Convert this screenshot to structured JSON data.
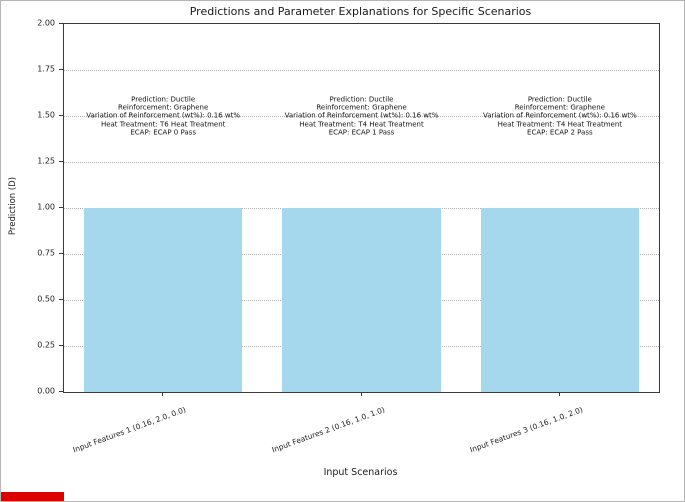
{
  "chart_data": {
    "type": "bar",
    "title": "Predictions and Parameter Explanations for Specific Scenarios",
    "xlabel": "Input Scenarios",
    "ylabel": "Prediction (D)",
    "ylim": [
      0,
      2.0
    ],
    "yticks": [
      "0.00",
      "0.25",
      "0.50",
      "0.75",
      "1.00",
      "1.25",
      "1.50",
      "1.75",
      "2.00"
    ],
    "ytick_values": [
      0,
      0.25,
      0.5,
      0.75,
      1.0,
      1.25,
      1.5,
      1.75,
      2.0
    ],
    "grid": "dotted-horizontal",
    "legend": "none",
    "bar_color": "#a5d8ec",
    "categories": [
      "Input Features 1 (0.16, 2.0, 0.0)",
      "Input Features 2 (0.16, 1.0, 1.0)",
      "Input Features 3 (0.16, 1.0, 2.0)"
    ],
    "values": [
      1.0,
      1.0,
      1.0
    ],
    "annotations": [
      {
        "anchor_y": 1.5,
        "lines": [
          "Prediction: Ductile",
          "Reinforcement: Graphene",
          "Variation of Reinforcement (wt%): 0.16 wt%",
          "Heat Treatment: T6 Heat Treatment",
          "ECAP: ECAP 0 Pass"
        ]
      },
      {
        "anchor_y": 1.5,
        "lines": [
          "Prediction: Ductile",
          "Reinforcement: Graphene",
          "Variation of Reinforcement (wt%): 0.16 wt%",
          "Heat Treatment: T4 Heat Treatment",
          "ECAP: ECAP 1 Pass"
        ]
      },
      {
        "anchor_y": 1.5,
        "lines": [
          "Prediction: Ductile",
          "Reinforcement: Graphene",
          "Variation of Reinforcement (wt%): 0.16 wt%",
          "Heat Treatment: T4 Heat Treatment",
          "ECAP: ECAP 2 Pass"
        ]
      }
    ]
  },
  "decor": {
    "red_strip_color": "#dd0000"
  }
}
